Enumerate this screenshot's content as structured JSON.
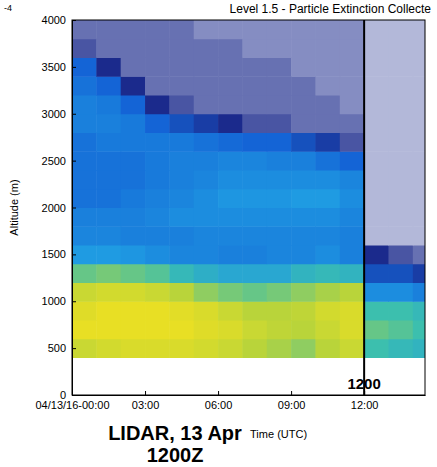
{
  "chart_data": {
    "type": "heatmap",
    "title": "Level 1.5 - Particle Extinction Collecte",
    "corner_label": "-4",
    "xlabel": "Time (UTC)",
    "ylabel": "Altitude (m)",
    "xlim": [
      0,
      14.5
    ],
    "ylim": [
      0,
      4000
    ],
    "xticks": [
      {
        "value": 0,
        "label": "04/13/16-00:00"
      },
      {
        "value": 3,
        "label": "03:00"
      },
      {
        "value": 6,
        "label": "06:00"
      },
      {
        "value": 9,
        "label": "09:00"
      },
      {
        "value": 12,
        "label": "12:00"
      }
    ],
    "yticks": [
      0,
      500,
      1000,
      1500,
      2000,
      2500,
      3000,
      3500,
      4000
    ],
    "grid": false,
    "zlim": [
      0,
      1
    ],
    "x_edges": [
      0,
      1,
      2,
      3,
      4,
      5,
      6,
      7,
      8,
      9,
      10,
      11,
      12,
      13,
      14,
      14.5
    ],
    "y_edges": [
      400,
      600,
      800,
      1000,
      1200,
      1400,
      1600,
      1800,
      2000,
      2200,
      2400,
      2600,
      2800,
      3000,
      3200,
      3400,
      3600,
      3800,
      4000
    ],
    "cells": [
      [
        0.85,
        0.88,
        0.9,
        0.9,
        0.9,
        0.88,
        0.85,
        0.8,
        0.78,
        0.75,
        0.8,
        0.85,
        0.65,
        0.62,
        0.6
      ],
      [
        0.95,
        0.95,
        0.95,
        0.95,
        0.95,
        0.92,
        0.9,
        0.85,
        0.82,
        0.8,
        0.85,
        0.9,
        0.7,
        0.68,
        0.65
      ],
      [
        0.92,
        0.95,
        0.95,
        0.95,
        0.93,
        0.9,
        0.85,
        0.8,
        0.8,
        0.82,
        0.88,
        0.9,
        0.65,
        0.65,
        0.62
      ],
      [
        0.85,
        0.88,
        0.88,
        0.85,
        0.8,
        0.75,
        0.72,
        0.7,
        0.72,
        0.75,
        0.78,
        0.8,
        0.45,
        0.45,
        0.4
      ],
      [
        0.7,
        0.72,
        0.7,
        0.68,
        0.62,
        0.58,
        0.55,
        0.55,
        0.55,
        0.6,
        0.62,
        0.6,
        0.25,
        0.25,
        0.2
      ],
      [
        0.5,
        0.5,
        0.48,
        0.45,
        0.42,
        0.42,
        0.4,
        0.4,
        0.42,
        0.42,
        0.45,
        0.4,
        0.15,
        0.12,
        0.1
      ],
      [
        0.42,
        0.42,
        0.4,
        0.4,
        0.4,
        0.42,
        0.42,
        0.42,
        0.42,
        0.42,
        0.42,
        0.4,
        0.05,
        0.05,
        0.05
      ],
      [
        0.4,
        0.4,
        0.4,
        0.42,
        0.45,
        0.45,
        0.45,
        0.45,
        0.45,
        0.45,
        0.45,
        0.42,
        0.05,
        0.05,
        0.05
      ],
      [
        0.35,
        0.35,
        0.38,
        0.4,
        0.42,
        0.45,
        0.48,
        0.48,
        0.48,
        0.5,
        0.5,
        0.45,
        0.05,
        0.05,
        0.05
      ],
      [
        0.35,
        0.35,
        0.35,
        0.38,
        0.4,
        0.42,
        0.45,
        0.45,
        0.45,
        0.45,
        0.45,
        0.42,
        0.05,
        0.05,
        0.05
      ],
      [
        0.35,
        0.35,
        0.35,
        0.38,
        0.4,
        0.4,
        0.42,
        0.42,
        0.4,
        0.4,
        0.35,
        0.3,
        0.05,
        0.05,
        0.05
      ],
      [
        0.35,
        0.38,
        0.38,
        0.38,
        0.38,
        0.35,
        0.32,
        0.3,
        0.3,
        0.25,
        0.2,
        0.12,
        0.05,
        0.05,
        0.05
      ],
      [
        0.4,
        0.4,
        0.38,
        0.3,
        0.25,
        0.2,
        0.15,
        0.12,
        0.12,
        0.1,
        0.1,
        0.1,
        0.05,
        0.05,
        0.05
      ],
      [
        0.4,
        0.38,
        0.3,
        0.15,
        0.12,
        0.1,
        0.1,
        0.1,
        0.1,
        0.1,
        0.1,
        0.08,
        0.05,
        0.05,
        0.05
      ],
      [
        0.35,
        0.3,
        0.15,
        0.1,
        0.1,
        0.1,
        0.1,
        0.1,
        0.1,
        0.1,
        0.08,
        0.08,
        0.05,
        0.05,
        0.05
      ],
      [
        0.3,
        0.15,
        0.1,
        0.1,
        0.1,
        0.1,
        0.1,
        0.1,
        0.1,
        0.08,
        0.08,
        0.08,
        0.05,
        0.05,
        0.05
      ],
      [
        0.12,
        0.1,
        0.1,
        0.1,
        0.1,
        0.1,
        0.1,
        0.08,
        0.08,
        0.08,
        0.08,
        0.08,
        0.05,
        0.05,
        0.05
      ],
      [
        0.1,
        0.1,
        0.1,
        0.1,
        0.1,
        0.08,
        0.08,
        0.08,
        0.08,
        0.08,
        0.08,
        0.08,
        0.05,
        0.05,
        0.05
      ]
    ],
    "annotations": [
      {
        "text": "1200",
        "x": 12
      }
    ],
    "caption": [
      "LIDAR, 13 Apr",
      "1200Z"
    ]
  }
}
